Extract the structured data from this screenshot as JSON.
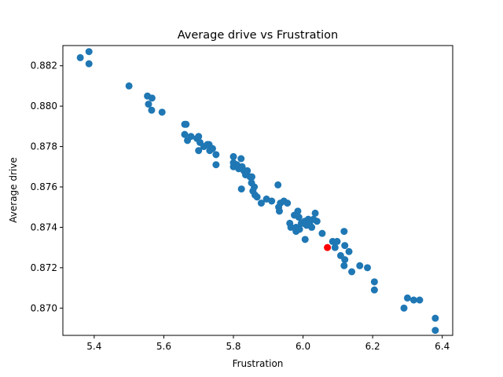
{
  "chart_data": {
    "type": "scatter",
    "title": "Average drive vs Frustration",
    "xlabel": "Frustration",
    "ylabel": "Average drive",
    "xlim": [
      5.31,
      6.43
    ],
    "ylim": [
      0.86865,
      0.883
    ],
    "xticks": [
      5.4,
      5.6,
      5.8,
      6.0,
      6.2,
      6.4
    ],
    "yticks": [
      0.87,
      0.872,
      0.874,
      0.876,
      0.878,
      0.88,
      0.882
    ],
    "xtick_labels": [
      "5.4",
      "5.6",
      "5.8",
      "6.0",
      "6.2",
      "6.4"
    ],
    "ytick_labels": [
      "0.870",
      "0.872",
      "0.874",
      "0.876",
      "0.878",
      "0.880",
      "0.882"
    ],
    "grid": false,
    "colors": {
      "points": "#1f77b4",
      "highlight": "#ff0000"
    },
    "series": [
      {
        "color": "#1f77b4",
        "points": [
          [
            5.36,
            0.8824
          ],
          [
            5.385,
            0.8827
          ],
          [
            5.385,
            0.8821
          ],
          [
            5.5,
            0.881
          ],
          [
            5.553,
            0.8805
          ],
          [
            5.566,
            0.8804
          ],
          [
            5.556,
            0.8801
          ],
          [
            5.565,
            0.8798
          ],
          [
            5.595,
            0.8797
          ],
          [
            5.66,
            0.8791
          ],
          [
            5.664,
            0.8791
          ],
          [
            5.66,
            0.8786
          ],
          [
            5.668,
            0.8783
          ],
          [
            5.678,
            0.8785
          ],
          [
            5.695,
            0.8784
          ],
          [
            5.7,
            0.8785
          ],
          [
            5.704,
            0.8782
          ],
          [
            5.7,
            0.8778
          ],
          [
            5.715,
            0.878
          ],
          [
            5.725,
            0.8781
          ],
          [
            5.73,
            0.8781
          ],
          [
            5.74,
            0.8779
          ],
          [
            5.732,
            0.8778
          ],
          [
            5.75,
            0.8776
          ],
          [
            5.75,
            0.8771
          ],
          [
            5.8,
            0.8775
          ],
          [
            5.822,
            0.8774
          ],
          [
            5.8,
            0.8772
          ],
          [
            5.8,
            0.877
          ],
          [
            5.81,
            0.8771
          ],
          [
            5.815,
            0.8769
          ],
          [
            5.825,
            0.877
          ],
          [
            5.83,
            0.8768
          ],
          [
            5.84,
            0.8768
          ],
          [
            5.835,
            0.8766
          ],
          [
            5.848,
            0.8765
          ],
          [
            5.853,
            0.8765
          ],
          [
            5.852,
            0.8762
          ],
          [
            5.86,
            0.876
          ],
          [
            5.823,
            0.8759
          ],
          [
            5.856,
            0.8758
          ],
          [
            5.862,
            0.8756
          ],
          [
            5.868,
            0.8755
          ],
          [
            5.88,
            0.8752
          ],
          [
            5.895,
            0.8754
          ],
          [
            5.91,
            0.8753
          ],
          [
            5.928,
            0.8761
          ],
          [
            5.935,
            0.8752
          ],
          [
            5.93,
            0.875
          ],
          [
            5.932,
            0.8748
          ],
          [
            5.945,
            0.8753
          ],
          [
            5.955,
            0.8752
          ],
          [
            5.962,
            0.8742
          ],
          [
            5.965,
            0.874
          ],
          [
            5.975,
            0.8746
          ],
          [
            5.985,
            0.8748
          ],
          [
            5.988,
            0.8745
          ],
          [
            5.98,
            0.874
          ],
          [
            5.98,
            0.8738
          ],
          [
            5.99,
            0.8739
          ],
          [
            5.995,
            0.8742
          ],
          [
            6.0,
            0.8742
          ],
          [
            6.005,
            0.8743
          ],
          [
            6.01,
            0.8741
          ],
          [
            6.015,
            0.8744
          ],
          [
            6.02,
            0.8743
          ],
          [
            6.02,
            0.8741
          ],
          [
            6.025,
            0.874
          ],
          [
            6.03,
            0.8744
          ],
          [
            6.035,
            0.8747
          ],
          [
            6.04,
            0.8743
          ],
          [
            6.006,
            0.8734
          ],
          [
            6.055,
            0.8737
          ],
          [
            6.085,
            0.8733
          ],
          [
            6.098,
            0.8733
          ],
          [
            6.092,
            0.873
          ],
          [
            6.118,
            0.8738
          ],
          [
            6.12,
            0.8731
          ],
          [
            6.132,
            0.8728
          ],
          [
            6.108,
            0.8726
          ],
          [
            6.12,
            0.8724
          ],
          [
            6.118,
            0.8721
          ],
          [
            6.14,
            0.8718
          ],
          [
            6.163,
            0.8721
          ],
          [
            6.185,
            0.872
          ],
          [
            6.205,
            0.8713
          ],
          [
            6.205,
            0.8709
          ],
          [
            6.29,
            0.87
          ],
          [
            6.3,
            0.8705
          ],
          [
            6.318,
            0.8704
          ],
          [
            6.335,
            0.8704
          ],
          [
            6.38,
            0.8695
          ],
          [
            6.38,
            0.8689
          ]
        ]
      },
      {
        "color": "#ff0000",
        "points": [
          [
            6.07,
            0.873
          ]
        ]
      }
    ]
  }
}
